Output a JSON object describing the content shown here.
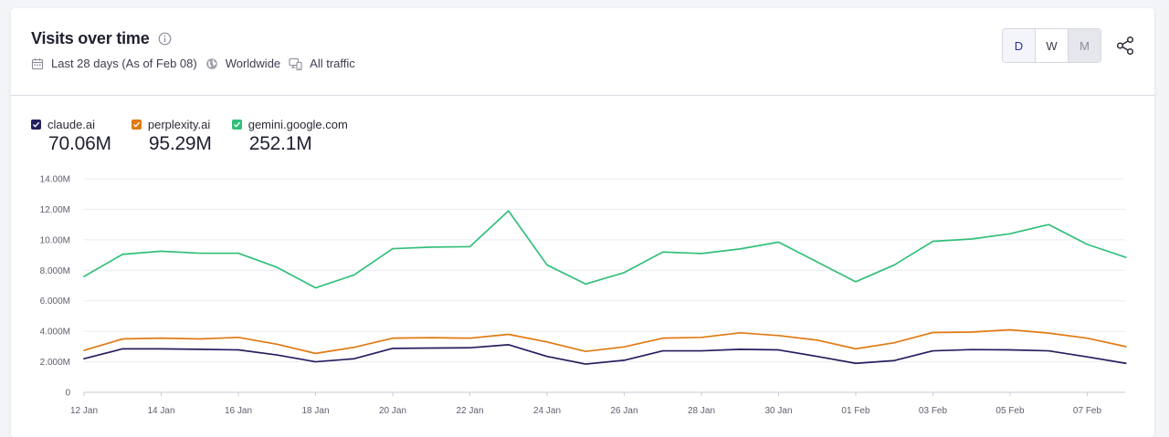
{
  "header": {
    "title": "Visits over time",
    "date_range": "Last 28 days (As of Feb 08)",
    "region": "Worldwide",
    "traffic": "All traffic"
  },
  "granularity": {
    "options": [
      "D",
      "W",
      "M"
    ],
    "selected": "D",
    "disabled": "M"
  },
  "legend": [
    {
      "name": "claude.ai",
      "total": "70.06M",
      "color": "#241f5e"
    },
    {
      "name": "perplexity.ai",
      "total": "95.29M",
      "color": "#e07a12"
    },
    {
      "name": "gemini.google.com",
      "total": "252.1M",
      "color": "#33bf7a"
    }
  ],
  "chart_data": {
    "type": "line",
    "title": "",
    "xlabel": "",
    "ylabel": "",
    "ylim": [
      0,
      14000000
    ],
    "y_ticks": [
      "0",
      "2.000M",
      "4.000M",
      "6.000M",
      "8.000M",
      "10.00M",
      "12.00M",
      "14.00M"
    ],
    "x_tick_labels": [
      "12 Jan",
      "14 Jan",
      "16 Jan",
      "18 Jan",
      "20 Jan",
      "22 Jan",
      "24 Jan",
      "26 Jan",
      "28 Jan",
      "30 Jan",
      "01 Feb",
      "03 Feb",
      "05 Feb",
      "07 Feb"
    ],
    "x": [
      "12 Jan",
      "13 Jan",
      "14 Jan",
      "15 Jan",
      "16 Jan",
      "17 Jan",
      "18 Jan",
      "19 Jan",
      "20 Jan",
      "21 Jan",
      "22 Jan",
      "23 Jan",
      "24 Jan",
      "25 Jan",
      "26 Jan",
      "27 Jan",
      "28 Jan",
      "29 Jan",
      "30 Jan",
      "31 Jan",
      "01 Feb",
      "02 Feb",
      "03 Feb",
      "04 Feb",
      "05 Feb",
      "06 Feb",
      "07 Feb",
      "08 Feb"
    ],
    "grid": true,
    "legend_placement": "top-left",
    "series": [
      {
        "name": "claude.ai",
        "color": "#241f5e",
        "values": [
          2.2,
          2.85,
          2.85,
          2.82,
          2.78,
          2.45,
          2.0,
          2.2,
          2.88,
          2.9,
          2.92,
          3.12,
          2.35,
          1.85,
          2.1,
          2.72,
          2.72,
          2.82,
          2.78,
          2.35,
          1.9,
          2.08,
          2.72,
          2.8,
          2.78,
          2.72,
          2.32,
          1.9
        ]
      },
      {
        "name": "perplexity.ai",
        "color": "#e07a12",
        "values": [
          2.75,
          3.5,
          3.55,
          3.5,
          3.6,
          3.15,
          2.55,
          2.95,
          3.55,
          3.58,
          3.55,
          3.8,
          3.3,
          2.68,
          2.98,
          3.55,
          3.6,
          3.9,
          3.72,
          3.42,
          2.85,
          3.25,
          3.92,
          3.95,
          4.1,
          3.88,
          3.55,
          3.0
        ]
      },
      {
        "name": "gemini.google.com",
        "color": "#33bf7a",
        "values": [
          7.6,
          9.05,
          9.25,
          9.12,
          9.12,
          8.2,
          6.85,
          7.7,
          9.42,
          9.52,
          9.55,
          11.9,
          8.35,
          7.1,
          7.85,
          9.2,
          9.1,
          9.4,
          9.85,
          8.55,
          7.25,
          8.35,
          9.9,
          10.05,
          10.4,
          11.0,
          9.7,
          8.85
        ]
      }
    ],
    "value_unit": "M"
  }
}
